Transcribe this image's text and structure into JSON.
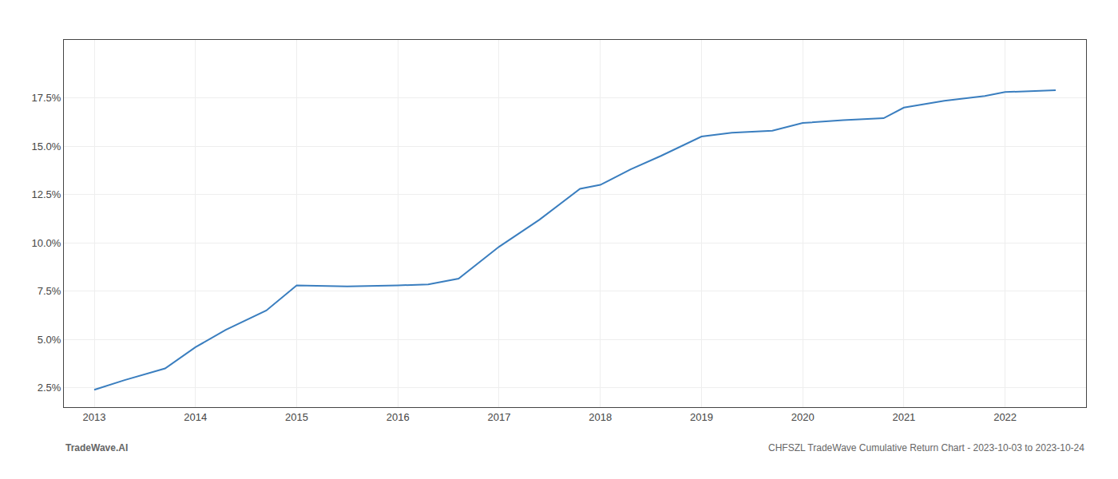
{
  "chart_data": {
    "type": "line",
    "x": [
      2013,
      2013.3,
      2013.7,
      2014,
      2014.3,
      2014.7,
      2015,
      2015.5,
      2016,
      2016.3,
      2016.6,
      2017,
      2017.4,
      2017.8,
      2018,
      2018.3,
      2018.6,
      2019,
      2019.3,
      2019.7,
      2020,
      2020.4,
      2020.8,
      2021,
      2021.4,
      2021.8,
      2022,
      2022.5
    ],
    "values": [
      2.4,
      2.9,
      3.5,
      4.6,
      5.5,
      6.5,
      7.8,
      7.75,
      7.8,
      7.85,
      8.15,
      9.8,
      11.2,
      12.8,
      13.0,
      13.8,
      14.5,
      15.5,
      15.7,
      15.8,
      16.2,
      16.35,
      16.45,
      17.0,
      17.35,
      17.6,
      17.8,
      17.9
    ],
    "color": "#3a7ebf",
    "xlim": [
      2012.7,
      2022.8
    ],
    "xticks": [
      2013,
      2014,
      2015,
      2016,
      2017,
      2018,
      2019,
      2020,
      2021,
      2022
    ],
    "ylim": [
      1.5,
      20.5
    ],
    "yticks": [
      {
        "value": 2.5,
        "label": "2.5%"
      },
      {
        "value": 5.0,
        "label": "5.0%"
      },
      {
        "value": 7.5,
        "label": "7.5%"
      },
      {
        "value": 10.0,
        "label": "10.0%"
      },
      {
        "value": 12.5,
        "label": "12.5%"
      },
      {
        "value": 15.0,
        "label": "15.0%"
      },
      {
        "value": 17.5,
        "label": "17.5%"
      }
    ],
    "grid": true,
    "annotations": [
      "TradeWave.AI",
      "CHFSZL TradeWave Cumulative Return Chart - 2023-10-03 to 2023-10-24"
    ]
  }
}
